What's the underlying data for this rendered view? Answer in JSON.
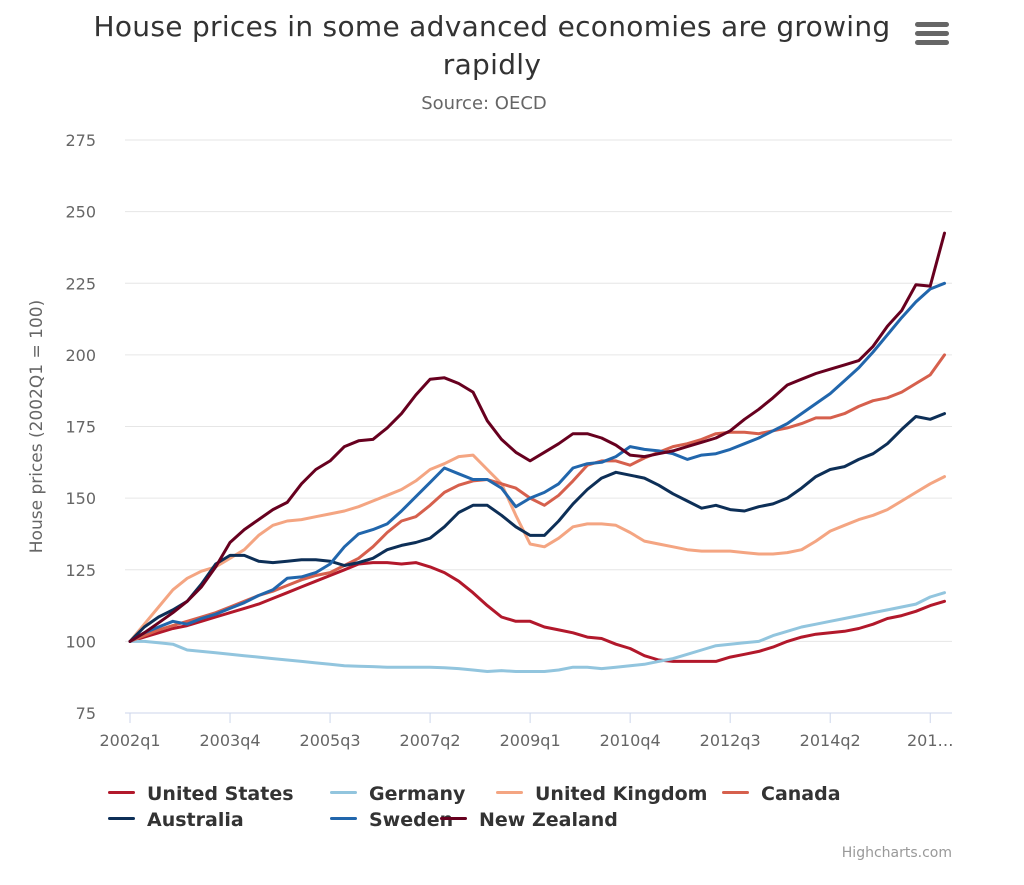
{
  "chart_data": {
    "type": "line",
    "title": "House prices in some advanced economies are growing rapidly",
    "subtitle": "Source: OECD",
    "ylabel": "House prices (2002Q1 = 100)",
    "xlabel": "",
    "ylim": [
      75,
      275
    ],
    "yticks": [
      75,
      100,
      125,
      150,
      175,
      200,
      225,
      250,
      275
    ],
    "grid": true,
    "legend_placement": "bottom",
    "xtick_labels": [
      "2002q1",
      "2003q4",
      "2005q3",
      "2007q2",
      "2009q1",
      "2010q4",
      "2012q3",
      "2014q2",
      "201…"
    ],
    "categories": [
      "2002q1",
      "2002q2",
      "2002q3",
      "2002q4",
      "2003q1",
      "2003q2",
      "2003q3",
      "2003q4",
      "2004q1",
      "2004q2",
      "2004q3",
      "2004q4",
      "2005q1",
      "2005q2",
      "2005q3",
      "2005q4",
      "2006q1",
      "2006q2",
      "2006q3",
      "2006q4",
      "2007q1",
      "2007q2",
      "2007q3",
      "2007q4",
      "2008q1",
      "2008q2",
      "2008q3",
      "2008q4",
      "2009q1",
      "2009q2",
      "2009q3",
      "2009q4",
      "2010q1",
      "2010q2",
      "2010q3",
      "2010q4",
      "2011q1",
      "2011q2",
      "2011q3",
      "2011q4",
      "2012q1",
      "2012q2",
      "2012q3",
      "2012q4",
      "2013q1",
      "2013q2",
      "2013q3",
      "2013q4",
      "2014q1",
      "2014q2",
      "2014q3",
      "2014q4",
      "2015q1",
      "2015q2",
      "2015q3",
      "2015q4",
      "2016q1",
      "2016q2"
    ],
    "series": [
      {
        "name": "United States",
        "color": "#b2182b",
        "values": [
          100,
          101.5,
          103,
          104.5,
          105.5,
          107,
          108.5,
          110,
          111.5,
          113,
          115,
          117,
          119,
          121,
          123,
          125,
          127,
          127.5,
          127.5,
          127,
          127.5,
          126,
          124,
          121,
          117,
          112.5,
          108.5,
          107,
          107,
          105,
          104,
          103,
          101.5,
          101,
          99,
          97.5,
          95,
          93.5,
          93,
          93,
          93,
          93,
          94.5,
          95.5,
          96.5,
          98,
          100,
          101.5,
          102.5,
          103,
          103.5,
          104.5,
          106,
          108,
          109,
          110.5,
          112.5,
          114
        ]
      },
      {
        "name": "Germany",
        "color": "#92c5de",
        "values": [
          100,
          100,
          99.5,
          99,
          97,
          96.5,
          96,
          95.5,
          95,
          94.5,
          94,
          93.5,
          93,
          92.5,
          92,
          91.5,
          91.3,
          91.2,
          91,
          91,
          91,
          91,
          90.8,
          90.5,
          90,
          89.5,
          89.8,
          89.5,
          89.5,
          89.5,
          90,
          91,
          91,
          90.5,
          91,
          91.5,
          92,
          93,
          94,
          95.5,
          97,
          98.5,
          99,
          99.5,
          100,
          102,
          103.5,
          105,
          106,
          107,
          108,
          109,
          110,
          111,
          112,
          113,
          115.5,
          117
        ]
      },
      {
        "name": "United Kingdom",
        "color": "#f4a582",
        "values": [
          100,
          106,
          112,
          118,
          122,
          124.5,
          126,
          129,
          132,
          137,
          140.5,
          142,
          142.5,
          143.5,
          144.5,
          145.5,
          147,
          149,
          151,
          153,
          156,
          160,
          162,
          164.5,
          165,
          160,
          155,
          144,
          134,
          133,
          136,
          140,
          141,
          141,
          140.5,
          138,
          135,
          134,
          133,
          132,
          131.5,
          131.5,
          131.5,
          131,
          130.5,
          130.5,
          131,
          132,
          135,
          138.5,
          140.5,
          142.5,
          144,
          146,
          149,
          152,
          155,
          157.5
        ]
      },
      {
        "name": "Canada",
        "color": "#d6604d",
        "values": [
          100,
          102,
          104,
          105.5,
          107,
          108.5,
          110,
          112,
          114,
          116,
          117.5,
          119.5,
          121.5,
          123,
          124,
          126.5,
          129,
          133,
          138,
          142,
          143.5,
          147.5,
          152,
          154.5,
          156,
          156.5,
          155,
          153.5,
          150,
          147.5,
          151,
          156,
          161.5,
          163,
          163,
          161.5,
          164,
          166,
          168,
          169,
          170.5,
          172.5,
          173,
          173,
          172.5,
          173.5,
          174.5,
          176,
          178,
          178,
          179.5,
          182,
          184,
          185,
          187,
          190,
          193,
          200
        ]
      },
      {
        "name": "Australia",
        "color": "#0d2f57",
        "values": [
          100,
          105,
          108.5,
          111,
          114,
          120,
          127,
          130,
          130,
          128,
          127.5,
          128,
          128.5,
          128.5,
          128,
          126.5,
          127.5,
          129,
          132,
          133.5,
          134.5,
          136,
          140,
          145,
          147.5,
          147.5,
          144,
          140,
          137,
          137,
          142,
          148,
          153,
          157,
          159,
          158,
          157,
          154.5,
          151.5,
          149,
          146.5,
          147.5,
          146,
          145.5,
          147,
          148,
          150,
          153.5,
          157.5,
          160,
          161,
          163.5,
          165.5,
          169,
          174,
          178.5,
          177.5,
          179.5
        ]
      },
      {
        "name": "Sweden",
        "color": "#2166ac",
        "values": [
          100,
          103,
          105,
          107,
          106,
          108,
          109.5,
          111.5,
          113.5,
          116,
          118,
          122,
          122.5,
          124,
          127,
          133,
          137.5,
          139,
          141,
          145.5,
          150.5,
          155.5,
          160.5,
          158.5,
          156.5,
          156.5,
          153.5,
          147,
          150,
          152,
          155,
          160.5,
          162,
          162.5,
          164.5,
          168,
          167,
          166.5,
          165.5,
          163.5,
          165,
          165.5,
          167,
          169,
          171,
          173.5,
          176,
          179.5,
          183,
          186.5,
          191,
          195.5,
          201,
          207,
          213,
          218.5,
          223,
          225
        ]
      },
      {
        "name": "New Zealand",
        "color": "#67001f",
        "values": [
          100,
          103,
          106.5,
          110,
          114,
          119,
          126,
          134.5,
          139,
          142.5,
          146,
          148.5,
          155,
          160,
          163,
          168,
          170,
          170.5,
          174.5,
          179.5,
          186,
          191.5,
          192,
          190,
          187,
          177,
          170.5,
          166,
          163,
          166,
          169,
          172.5,
          172.5,
          171,
          168.5,
          165,
          164.5,
          165.5,
          166.5,
          168,
          169.5,
          171,
          173.5,
          177.5,
          181,
          185,
          189.5,
          191.5,
          193.5,
          195,
          196.5,
          198,
          203,
          210,
          215.5,
          224.5,
          224,
          242.5
        ]
      }
    ]
  },
  "menu_icon": "hamburger-menu-icon",
  "credits": "Highcharts.com"
}
